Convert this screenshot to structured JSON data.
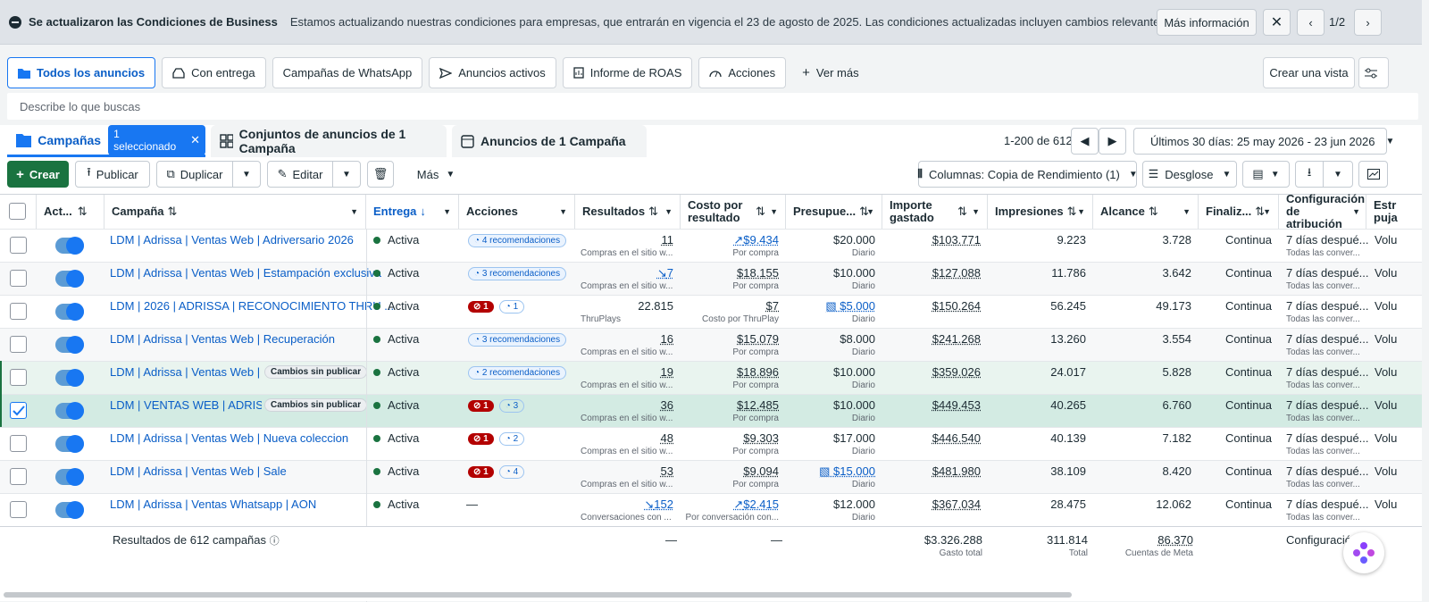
{
  "banner": {
    "title": "Se actualizaron las Condiciones de Business",
    "text": "Estamos actualizando nuestras condiciones para empresas, que entrarán en vigencia el 23 de agosto de 2025. Las condiciones actualizadas incluyen cambios relevantes para los anunciantes suje...",
    "more_label": "Más información",
    "pager": "1/2"
  },
  "view_tabs": [
    {
      "label": "Todos los anuncios",
      "icon": "folder-icon"
    },
    {
      "label": "Con entrega",
      "icon": "inbox-icon"
    },
    {
      "label": "Campañas de WhatsApp",
      "icon": ""
    },
    {
      "label": "Anuncios activos",
      "icon": "send-icon"
    },
    {
      "label": "Informe de ROAS",
      "icon": "report-icon"
    },
    {
      "label": "Acciones",
      "icon": "gauge-icon"
    },
    {
      "label": "Ver más",
      "icon": "plus-icon"
    }
  ],
  "create_view_label": "Crear una vista",
  "search_placeholder": "Describe lo que buscas",
  "level_tabs": {
    "campaigns": "Campañas",
    "selected_chip": "1 seleccionado",
    "adsets": "Conjuntos de anuncios de 1 Campaña",
    "ads": "Anuncios de 1 Campaña"
  },
  "pagination": "1-200 de 612",
  "date_range": "Últimos 30 días: 25 may 2026 - 23 jun 2026",
  "toolbar": {
    "create": "Crear",
    "publish": "Publicar",
    "duplicate": "Duplicar",
    "edit": "Editar",
    "more": "Más",
    "columns": "Columnas: Copia de Rendimiento (1)",
    "breakdown": "Desglose"
  },
  "columns": [
    "Act...",
    "Campaña",
    "Entrega",
    "Acciones",
    "Resultados",
    "Costo por resultado",
    "Presupue...",
    "Importe gastado",
    "Impresiones",
    "Alcance",
    "Finaliz...",
    "Configuración de atribución",
    "Estr puja"
  ],
  "rows": [
    {
      "name": "LDM | Adrissa | Ventas Web | Adriversario 2026",
      "delivery": "Activa",
      "actions_type": "rec",
      "actions": "4 recomendaciones",
      "err": "",
      "rec_count": "",
      "results": "11",
      "results_sub": "Compras en el sitio w...",
      "cost": "$9.434",
      "cost_sub": "Por compra",
      "budget": "$20.000",
      "budget_sub": "Diario",
      "spent": "$103.771",
      "impressions": "9.223",
      "reach": "3.728",
      "ends": "Continua",
      "attr": "7 días despué...",
      "attr_sub": "Todas las conver...",
      "bid": "Volu",
      "unpublished": "",
      "checked": false,
      "row_style": "",
      "cost_trend": "up",
      "results_trend": "",
      "budget_link": false
    },
    {
      "name": "LDM | Adrissa | Ventas Web | Estampación exclusiva",
      "delivery": "Activa",
      "actions_type": "rec",
      "actions": "3 recomendaciones",
      "err": "",
      "rec_count": "",
      "results": "7",
      "results_sub": "Compras en el sitio w...",
      "cost": "$18.155",
      "cost_sub": "Por compra",
      "budget": "$10.000",
      "budget_sub": "Diario",
      "spent": "$127.088",
      "impressions": "11.786",
      "reach": "3.642",
      "ends": "Continua",
      "attr": "7 días despué...",
      "attr_sub": "Todas las conver...",
      "bid": "Volu",
      "unpublished": "",
      "checked": false,
      "row_style": "alt",
      "cost_trend": "",
      "results_trend": "down",
      "budget_link": false
    },
    {
      "name": "LDM | 2026 | ADRISSA | RECONOCIMIENTO THRU ...",
      "delivery": "Activa",
      "actions_type": "err",
      "actions": "",
      "err": "1",
      "rec_count": "1",
      "results": "22.815",
      "results_sub": "ThruPlays",
      "cost": "$7",
      "cost_sub": "Costo por ThruPlay",
      "budget": "$5.000",
      "budget_sub": "Diario",
      "spent": "$150.264",
      "impressions": "56.245",
      "reach": "49.173",
      "ends": "Continua",
      "attr": "7 días despué...",
      "attr_sub": "Todas las conver...",
      "bid": "Volu",
      "unpublished": "",
      "checked": false,
      "row_style": "",
      "cost_trend": "",
      "results_trend": "",
      "budget_link": true
    },
    {
      "name": "LDM | Adrissa | Ventas Web | Recuperación",
      "delivery": "Activa",
      "actions_type": "rec",
      "actions": "3 recomendaciones",
      "err": "",
      "rec_count": "",
      "results": "16",
      "results_sub": "Compras en el sitio w...",
      "cost": "$15.079",
      "cost_sub": "Por compra",
      "budget": "$8.000",
      "budget_sub": "Diario",
      "spent": "$241.268",
      "impressions": "13.260",
      "reach": "3.554",
      "ends": "Continua",
      "attr": "7 días despué...",
      "attr_sub": "Todas las conver...",
      "bid": "Volu",
      "unpublished": "",
      "checked": false,
      "row_style": "alt",
      "cost_trend": "",
      "results_trend": "",
      "budget_link": false
    },
    {
      "name": "LDM | Adrissa | Ventas Web | B...",
      "delivery": "Activa",
      "actions_type": "rec",
      "actions": "2 recomendaciones",
      "err": "",
      "rec_count": "",
      "results": "19",
      "results_sub": "Compras en el sitio w...",
      "cost": "$18.896",
      "cost_sub": "Por compra",
      "budget": "$10.000",
      "budget_sub": "Diario",
      "spent": "$359.026",
      "impressions": "24.017",
      "reach": "5.828",
      "ends": "Continua",
      "attr": "7 días despué...",
      "attr_sub": "Todas las conver...",
      "bid": "Volu",
      "unpublished": "Cambios sin publicar",
      "checked": false,
      "row_style": "green",
      "cost_trend": "",
      "results_trend": "",
      "budget_link": false
    },
    {
      "name": "LDM | VENTAS WEB | ADRISS...",
      "delivery": "Activa",
      "actions_type": "err",
      "actions": "",
      "err": "1",
      "rec_count": "3",
      "results": "36",
      "results_sub": "Compras en el sitio w...",
      "cost": "$12.485",
      "cost_sub": "Por compra",
      "budget": "$10.000",
      "budget_sub": "Diario",
      "spent": "$449.453",
      "impressions": "40.265",
      "reach": "6.760",
      "ends": "Continua",
      "attr": "7 días despué...",
      "attr_sub": "Todas las conver...",
      "bid": "Volu",
      "unpublished": "Cambios sin publicar",
      "checked": true,
      "row_style": "sel",
      "cost_trend": "",
      "results_trend": "",
      "budget_link": false
    },
    {
      "name": "LDM | Adrissa | Ventas Web | Nueva coleccion",
      "delivery": "Activa",
      "actions_type": "err",
      "actions": "",
      "err": "1",
      "rec_count": "2",
      "results": "48",
      "results_sub": "Compras en el sitio w...",
      "cost": "$9.303",
      "cost_sub": "Por compra",
      "budget": "$17.000",
      "budget_sub": "Diario",
      "spent": "$446.540",
      "impressions": "40.139",
      "reach": "7.182",
      "ends": "Continua",
      "attr": "7 días despué...",
      "attr_sub": "Todas las conver...",
      "bid": "Volu",
      "unpublished": "",
      "checked": false,
      "row_style": "",
      "cost_trend": "",
      "results_trend": "",
      "budget_link": false
    },
    {
      "name": "LDM | Adrissa | Ventas Web | Sale",
      "delivery": "Activa",
      "actions_type": "err",
      "actions": "",
      "err": "1",
      "rec_count": "4",
      "results": "53",
      "results_sub": "Compras en el sitio w...",
      "cost": "$9.094",
      "cost_sub": "Por compra",
      "budget": "$15.000",
      "budget_sub": "Diario",
      "spent": "$481.980",
      "impressions": "38.109",
      "reach": "8.420",
      "ends": "Continua",
      "attr": "7 días despué...",
      "attr_sub": "Todas las conver...",
      "bid": "Volu",
      "unpublished": "",
      "checked": false,
      "row_style": "alt",
      "cost_trend": "",
      "results_trend": "",
      "budget_link": true
    },
    {
      "name": "LDM | Adrissa | Ventas Whatsapp | AON",
      "delivery": "Activa",
      "actions_type": "none",
      "actions": "—",
      "err": "",
      "rec_count": "",
      "results": "152",
      "results_sub": "Conversaciones con ...",
      "cost": "$2.415",
      "cost_sub": "Por conversación con...",
      "budget": "$12.000",
      "budget_sub": "Diario",
      "spent": "$367.034",
      "impressions": "28.475",
      "reach": "12.062",
      "ends": "Continua",
      "attr": "7 días despué...",
      "attr_sub": "Todas las conver...",
      "bid": "Volu",
      "unpublished": "",
      "checked": false,
      "row_style": "",
      "cost_trend": "up",
      "results_trend": "down",
      "budget_link": false
    }
  ],
  "totals": {
    "label": "Resultados de 612 campañas",
    "results": "—",
    "cost": "—",
    "spent": "$3.326.288",
    "spent_sub": "Gasto total",
    "impressions": "311.814",
    "impressions_sub": "Total",
    "reach": "86.370",
    "reach_sub": "Cuentas de Meta",
    "attr": "Configuración"
  }
}
